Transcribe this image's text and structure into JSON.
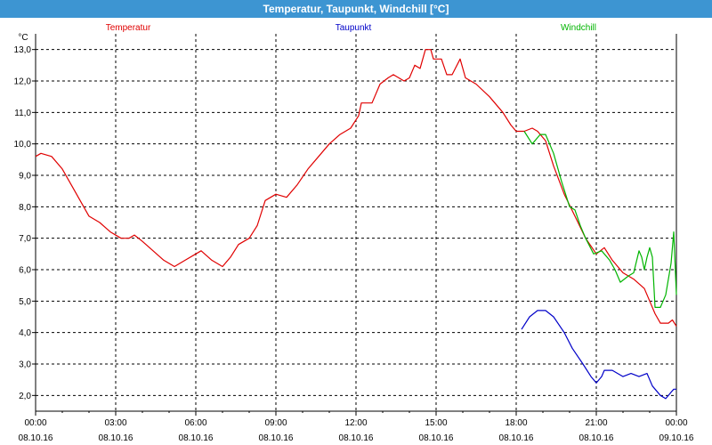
{
  "window": {
    "title": "Temperatur, Taupunkt, Windchill [°C]"
  },
  "colors": {
    "titlebar": "#3d95d2",
    "grid": "#000000",
    "background": "#ffffff"
  },
  "chart_data": {
    "type": "line",
    "title": "Temperatur, Taupunkt, Windchill [°C]",
    "ylabel": "°C",
    "xlabel": "",
    "x_unit": "hours from 08.10.16 00:00",
    "xlim": [
      0,
      24
    ],
    "ylim": [
      1.5,
      13.5
    ],
    "grid": true,
    "legend_placement": "top",
    "y_ticks": [
      "2,0",
      "3,0",
      "4,0",
      "5,0",
      "6,0",
      "7,0",
      "8,0",
      "9,0",
      "10,0",
      "11,0",
      "12,0",
      "13,0"
    ],
    "y_tick_values": [
      2,
      3,
      4,
      5,
      6,
      7,
      8,
      9,
      10,
      11,
      12,
      13
    ],
    "x_ticks": [
      {
        "t": 0,
        "time": "00:00",
        "date": "08.10.16"
      },
      {
        "t": 3,
        "time": "03:00",
        "date": "08.10.16"
      },
      {
        "t": 6,
        "time": "06:00",
        "date": "08.10.16"
      },
      {
        "t": 9,
        "time": "09:00",
        "date": "08.10.16"
      },
      {
        "t": 12,
        "time": "12:00",
        "date": "08.10.16"
      },
      {
        "t": 15,
        "time": "15:00",
        "date": "08.10.16"
      },
      {
        "t": 18,
        "time": "18:00",
        "date": "08.10.16"
      },
      {
        "t": 21,
        "time": "21:00",
        "date": "08.10.16"
      },
      {
        "t": 24,
        "time": "00:00",
        "date": "09.10.16"
      }
    ],
    "series": [
      {
        "name": "Temperatur",
        "color": "#e00000",
        "points": [
          [
            0.0,
            9.6
          ],
          [
            0.2,
            9.7
          ],
          [
            0.6,
            9.6
          ],
          [
            1.0,
            9.2
          ],
          [
            1.4,
            8.6
          ],
          [
            1.8,
            8.0
          ],
          [
            2.0,
            7.7
          ],
          [
            2.4,
            7.5
          ],
          [
            2.8,
            7.2
          ],
          [
            3.2,
            7.0
          ],
          [
            3.5,
            7.0
          ],
          [
            3.7,
            7.1
          ],
          [
            4.0,
            6.9
          ],
          [
            4.4,
            6.6
          ],
          [
            4.8,
            6.3
          ],
          [
            5.2,
            6.1
          ],
          [
            5.6,
            6.3
          ],
          [
            6.0,
            6.5
          ],
          [
            6.2,
            6.6
          ],
          [
            6.6,
            6.3
          ],
          [
            7.0,
            6.1
          ],
          [
            7.3,
            6.4
          ],
          [
            7.6,
            6.8
          ],
          [
            8.0,
            7.0
          ],
          [
            8.3,
            7.4
          ],
          [
            8.6,
            8.2
          ],
          [
            9.0,
            8.4
          ],
          [
            9.4,
            8.3
          ],
          [
            9.8,
            8.7
          ],
          [
            10.2,
            9.2
          ],
          [
            10.6,
            9.6
          ],
          [
            11.0,
            10.0
          ],
          [
            11.4,
            10.3
          ],
          [
            11.8,
            10.5
          ],
          [
            12.1,
            10.9
          ],
          [
            12.2,
            11.3
          ],
          [
            12.6,
            11.3
          ],
          [
            12.9,
            11.9
          ],
          [
            13.2,
            12.1
          ],
          [
            13.4,
            12.2
          ],
          [
            13.8,
            12.0
          ],
          [
            14.0,
            12.1
          ],
          [
            14.2,
            12.5
          ],
          [
            14.4,
            12.4
          ],
          [
            14.6,
            13.0
          ],
          [
            14.8,
            13.0
          ],
          [
            14.9,
            12.7
          ],
          [
            15.2,
            12.7
          ],
          [
            15.4,
            12.2
          ],
          [
            15.6,
            12.2
          ],
          [
            15.9,
            12.7
          ],
          [
            16.1,
            12.1
          ],
          [
            16.5,
            11.9
          ],
          [
            17.0,
            11.5
          ],
          [
            17.5,
            11.0
          ],
          [
            17.8,
            10.6
          ],
          [
            18.0,
            10.4
          ],
          [
            18.3,
            10.4
          ],
          [
            18.6,
            10.5
          ],
          [
            18.8,
            10.4
          ],
          [
            19.1,
            10.1
          ],
          [
            19.4,
            9.3
          ],
          [
            19.8,
            8.4
          ],
          [
            20.2,
            7.7
          ],
          [
            20.6,
            7.0
          ],
          [
            21.0,
            6.5
          ],
          [
            21.3,
            6.7
          ],
          [
            21.6,
            6.3
          ],
          [
            22.0,
            5.9
          ],
          [
            22.4,
            5.7
          ],
          [
            22.8,
            5.4
          ],
          [
            23.0,
            5.0
          ],
          [
            23.2,
            4.6
          ],
          [
            23.4,
            4.3
          ],
          [
            23.7,
            4.3
          ],
          [
            23.85,
            4.4
          ],
          [
            24.0,
            4.2
          ]
        ]
      },
      {
        "name": "Taupunkt",
        "color": "#0000c8",
        "points": [
          [
            18.2,
            4.1
          ],
          [
            18.5,
            4.5
          ],
          [
            18.8,
            4.7
          ],
          [
            19.1,
            4.7
          ],
          [
            19.4,
            4.5
          ],
          [
            19.8,
            4.0
          ],
          [
            20.1,
            3.5
          ],
          [
            20.5,
            3.0
          ],
          [
            20.8,
            2.6
          ],
          [
            21.0,
            2.4
          ],
          [
            21.2,
            2.6
          ],
          [
            21.3,
            2.8
          ],
          [
            21.6,
            2.8
          ],
          [
            22.0,
            2.6
          ],
          [
            22.3,
            2.7
          ],
          [
            22.6,
            2.6
          ],
          [
            22.9,
            2.7
          ],
          [
            23.1,
            2.3
          ],
          [
            23.4,
            2.0
          ],
          [
            23.6,
            1.9
          ],
          [
            23.8,
            2.1
          ],
          [
            23.9,
            2.2
          ],
          [
            24.0,
            2.2
          ]
        ]
      },
      {
        "name": "Windchill",
        "color": "#00b400",
        "points": [
          [
            18.3,
            10.4
          ],
          [
            18.6,
            10.0
          ],
          [
            18.9,
            10.3
          ],
          [
            19.1,
            10.3
          ],
          [
            19.4,
            9.7
          ],
          [
            19.7,
            8.8
          ],
          [
            20.0,
            8.0
          ],
          [
            20.2,
            7.9
          ],
          [
            20.4,
            7.4
          ],
          [
            20.6,
            7.0
          ],
          [
            20.9,
            6.5
          ],
          [
            21.2,
            6.6
          ],
          [
            21.5,
            6.3
          ],
          [
            21.7,
            6.0
          ],
          [
            21.9,
            5.6
          ],
          [
            22.2,
            5.8
          ],
          [
            22.4,
            5.9
          ],
          [
            22.6,
            6.6
          ],
          [
            22.7,
            6.4
          ],
          [
            22.8,
            6.0
          ],
          [
            22.9,
            6.4
          ],
          [
            23.0,
            6.7
          ],
          [
            23.1,
            6.4
          ],
          [
            23.2,
            4.8
          ],
          [
            23.4,
            4.8
          ],
          [
            23.6,
            5.2
          ],
          [
            23.8,
            6.2
          ],
          [
            23.9,
            7.2
          ],
          [
            24.0,
            5.2
          ]
        ]
      }
    ]
  }
}
